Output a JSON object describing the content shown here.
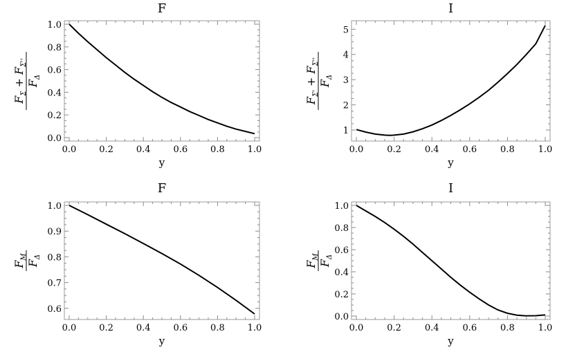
{
  "chart_data": [
    {
      "type": "line",
      "title": "F",
      "xlabel": "y",
      "ylabel": "(F_Σ + F_Σ'')/F_Δ",
      "ylabel_parts": {
        "num_a": "F",
        "sub_a": "Σ",
        "plus": "+",
        "num_b": "F",
        "sub_b": "Σ''",
        "den": "F",
        "den_sub": "Δ"
      },
      "xlim": [
        0,
        1
      ],
      "ylim": [
        0,
        1
      ],
      "xticks": [
        "0.0",
        "0.2",
        "0.4",
        "0.6",
        "0.8",
        "1.0"
      ],
      "yticks": [
        "0.0",
        "0.2",
        "0.4",
        "0.6",
        "0.8",
        "1.0"
      ],
      "series": [
        {
          "x": [
            0,
            0.05,
            0.1,
            0.15,
            0.2,
            0.25,
            0.3,
            0.35,
            0.4,
            0.45,
            0.5,
            0.55,
            0.6,
            0.65,
            0.7,
            0.75,
            0.8,
            0.85,
            0.9,
            0.95,
            1.0
          ],
          "values": [
            1.0,
            0.92,
            0.845,
            0.775,
            0.705,
            0.64,
            0.575,
            0.515,
            0.46,
            0.405,
            0.355,
            0.31,
            0.27,
            0.23,
            0.195,
            0.16,
            0.13,
            0.1,
            0.075,
            0.055,
            0.035
          ]
        }
      ]
    },
    {
      "type": "line",
      "title": "I",
      "xlabel": "y",
      "ylabel": "(F_Σ' + F_Σ'')/F_Δ",
      "ylabel_parts": {
        "num_a": "F",
        "sub_a": "Σ'",
        "plus": "+",
        "num_b": "F",
        "sub_b": "Σ''",
        "den": "F",
        "den_sub": "Δ"
      },
      "xlim": [
        0,
        1
      ],
      "ylim": [
        0.7,
        5.2
      ],
      "xticks": [
        "0.0",
        "0.2",
        "0.4",
        "0.6",
        "0.8",
        "1.0"
      ],
      "yticks": [
        "1",
        "2",
        "3",
        "4",
        "5"
      ],
      "series": [
        {
          "x": [
            0,
            0.05,
            0.1,
            0.15,
            0.18,
            0.2,
            0.25,
            0.3,
            0.35,
            0.4,
            0.45,
            0.5,
            0.55,
            0.6,
            0.65,
            0.7,
            0.75,
            0.8,
            0.85,
            0.9,
            0.95,
            1.0
          ],
          "values": [
            1.02,
            0.92,
            0.84,
            0.8,
            0.79,
            0.8,
            0.84,
            0.93,
            1.05,
            1.2,
            1.38,
            1.58,
            1.8,
            2.04,
            2.3,
            2.58,
            2.9,
            3.24,
            3.6,
            4.0,
            4.42,
            5.15
          ]
        }
      ]
    },
    {
      "type": "line",
      "title": "F",
      "xlabel": "y",
      "ylabel": "F_M/F_Δ",
      "ylabel_parts": {
        "num_a": "F",
        "sub_a": "M",
        "den": "F",
        "den_sub": "Δ"
      },
      "xlim": [
        0,
        1
      ],
      "ylim": [
        0.57,
        1.0
      ],
      "xticks": [
        "0.0",
        "0.2",
        "0.4",
        "0.6",
        "0.8",
        "1.0"
      ],
      "yticks": [
        "0.6",
        "0.7",
        "0.8",
        "0.9",
        "1.0"
      ],
      "series": [
        {
          "x": [
            0,
            0.1,
            0.2,
            0.3,
            0.4,
            0.5,
            0.6,
            0.7,
            0.8,
            0.9,
            1.0
          ],
          "values": [
            1.0,
            0.964,
            0.927,
            0.89,
            0.852,
            0.813,
            0.772,
            0.728,
            0.681,
            0.631,
            0.578
          ]
        }
      ]
    },
    {
      "type": "line",
      "title": "I",
      "xlabel": "y",
      "ylabel": "F_M/F_Δ",
      "ylabel_parts": {
        "num_a": "F",
        "sub_a": "M",
        "den": "F",
        "den_sub": "Δ"
      },
      "xlim": [
        0,
        1
      ],
      "ylim": [
        0,
        1
      ],
      "xticks": [
        "0.0",
        "0.2",
        "0.4",
        "0.6",
        "0.8",
        "1.0"
      ],
      "yticks": [
        "0.0",
        "0.2",
        "0.4",
        "0.6",
        "0.8",
        "1.0"
      ],
      "series": [
        {
          "x": [
            0,
            0.05,
            0.1,
            0.15,
            0.2,
            0.25,
            0.3,
            0.35,
            0.4,
            0.45,
            0.5,
            0.55,
            0.6,
            0.65,
            0.7,
            0.75,
            0.8,
            0.85,
            0.9,
            0.95,
            1.0
          ],
          "values": [
            1.0,
            0.95,
            0.9,
            0.845,
            0.785,
            0.72,
            0.65,
            0.575,
            0.5,
            0.425,
            0.35,
            0.28,
            0.215,
            0.155,
            0.1,
            0.055,
            0.025,
            0.008,
            0.002,
            0.003,
            0.01
          ]
        }
      ]
    }
  ]
}
